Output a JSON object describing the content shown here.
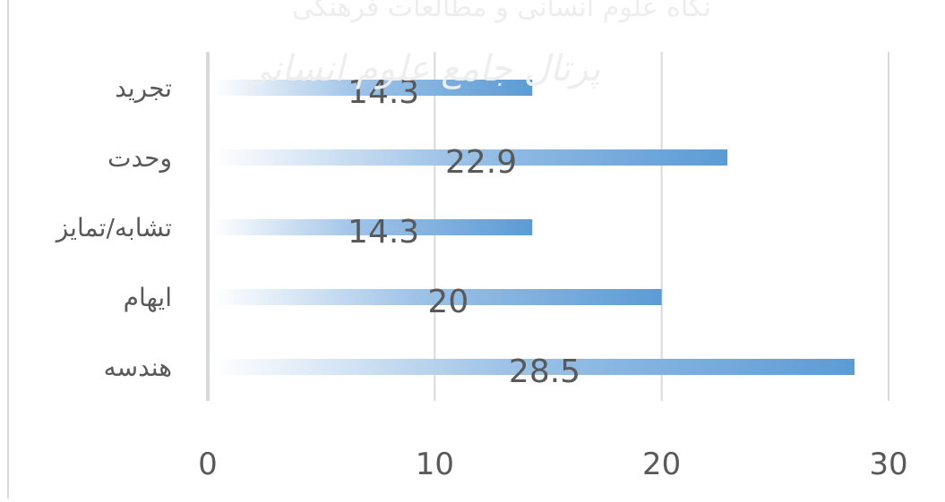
{
  "chart_data": {
    "type": "bar",
    "orientation": "horizontal",
    "categories": [
      "تجرید",
      "وحدت",
      "تشابه/تمایز",
      "ایهام",
      "هندسه"
    ],
    "values": [
      14.3,
      22.9,
      14.3,
      20,
      28.5
    ],
    "xlim": [
      0,
      30
    ],
    "xticks": [
      "0",
      "10",
      "20",
      "30"
    ],
    "grid": "vertical",
    "legend": "none",
    "bar_color": "#5b9bd5",
    "bar_fade_color": "#ffffff",
    "gridline_color": "#d9d9d9",
    "label_color": "#595959"
  },
  "watermark": {
    "text": "پرتال جامع علوم انسانی",
    "top_fragment": "نگاه علوم انسانی و مطالعات فرهنگی"
  }
}
